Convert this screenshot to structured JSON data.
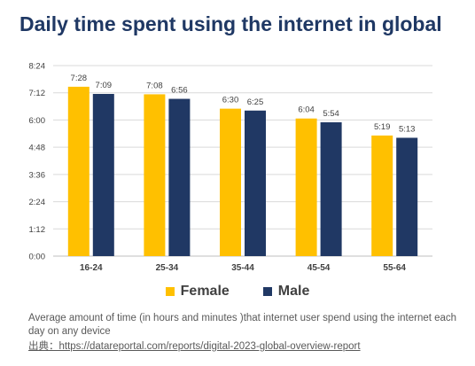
{
  "title": "Daily time spent using the internet in global",
  "note": "Average amount of time (in hours and minutes )that internet user spend using the internet each day on any device",
  "source": "出典：https://datareportal.com/reports/digital-2023-global-overview-report",
  "colors": {
    "female": "#ffc000",
    "male": "#203864",
    "title": "#1f3864"
  },
  "chart_data": {
    "type": "bar",
    "title": "Daily time spent using the internet in global",
    "categories": [
      "16-24",
      "25-34",
      "35-44",
      "45-54",
      "55-64"
    ],
    "series": [
      {
        "name": "Female",
        "values": [
          448,
          428,
          390,
          364,
          319
        ],
        "labels": [
          "7:28",
          "7:08",
          "6:30",
          "6:04",
          "5:19"
        ]
      },
      {
        "name": "Male",
        "values": [
          429,
          416,
          385,
          354,
          313
        ],
        "labels": [
          "7:09",
          "6:56",
          "6:25",
          "5:54",
          "5:13"
        ]
      }
    ],
    "value_unit": "minutes",
    "ylim": [
      0,
      504
    ],
    "yticks": [
      {
        "value": 0,
        "label": "0:00"
      },
      {
        "value": 72,
        "label": "1:12"
      },
      {
        "value": 144,
        "label": "2:24"
      },
      {
        "value": 216,
        "label": "3:36"
      },
      {
        "value": 288,
        "label": "4:48"
      },
      {
        "value": 360,
        "label": "6:00"
      },
      {
        "value": 432,
        "label": "7:12"
      },
      {
        "value": 504,
        "label": "8:24"
      }
    ],
    "grid": true,
    "legend": "bottom",
    "xlabel": "",
    "ylabel": ""
  }
}
